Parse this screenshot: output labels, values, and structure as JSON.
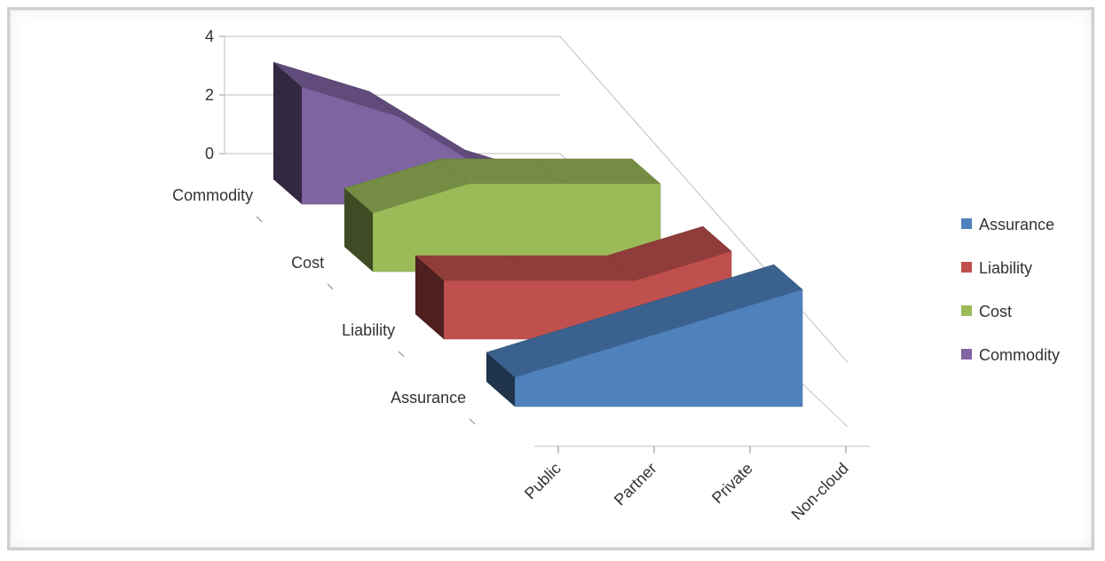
{
  "chart_data": {
    "type": "area",
    "subtype": "3d-area",
    "title": "",
    "xlabel": "",
    "ylabel": "",
    "categories": [
      "Public",
      "Partner",
      "Private",
      "Non-cloud"
    ],
    "ylim": [
      0,
      4
    ],
    "yticks": [
      0,
      2,
      4
    ],
    "depth_labels": [
      "Commodity",
      "Cost",
      "Liability",
      "Assurance"
    ],
    "series": [
      {
        "name": "Assurance",
        "values": [
          1,
          2,
          3,
          4
        ],
        "color": "#4f81bd"
      },
      {
        "name": "Liability",
        "values": [
          2,
          2,
          2,
          3
        ],
        "color": "#c0504d"
      },
      {
        "name": "Cost",
        "values": [
          2,
          3,
          3,
          3
        ],
        "color": "#9bbb59"
      },
      {
        "name": "Commodity",
        "values": [
          4,
          3,
          1,
          0
        ],
        "color": "#8064a2"
      }
    ],
    "legend": {
      "position": "right",
      "entries": [
        "Assurance",
        "Liability",
        "Cost",
        "Commodity"
      ]
    },
    "grid": true
  }
}
